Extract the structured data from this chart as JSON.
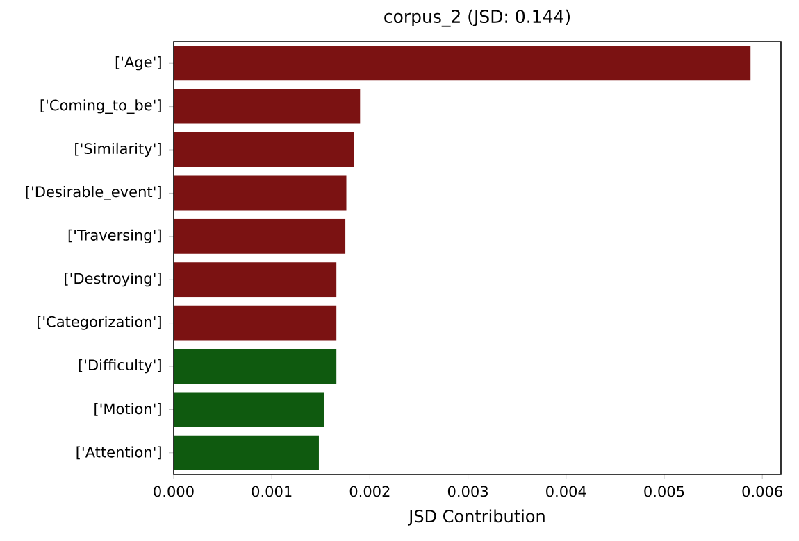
{
  "chart_data": {
    "type": "bar",
    "orientation": "horizontal",
    "title": "corpus_2 (JSD: 0.144)",
    "xlabel": "JSD Contribution",
    "categories": [
      "['Age']",
      "['Coming_to_be']",
      "['Similarity']",
      "['Desirable_event']",
      "['Traversing']",
      "['Destroying']",
      "['Categorization']",
      "['Difficulty']",
      "['Motion']",
      "['Attention']"
    ],
    "values": [
      0.00588,
      0.0019,
      0.00184,
      0.00176,
      0.00175,
      0.00166,
      0.00166,
      0.00166,
      0.00153,
      0.00148
    ],
    "colors": [
      "#7b1212",
      "#7b1212",
      "#7b1212",
      "#7b1212",
      "#7b1212",
      "#7b1212",
      "#7b1212",
      "#0f5a0f",
      "#0f5a0f",
      "#0f5a0f"
    ],
    "xlim": [
      0,
      0.00619
    ],
    "xticks": [
      {
        "value": 0,
        "label": "0.000"
      },
      {
        "value": 0.001,
        "label": "0.001"
      },
      {
        "value": 0.002,
        "label": "0.002"
      },
      {
        "value": 0.003,
        "label": "0.003"
      },
      {
        "value": 0.004,
        "label": "0.004"
      },
      {
        "value": 0.005,
        "label": "0.005"
      },
      {
        "value": 0.006,
        "label": "0.006"
      }
    ]
  }
}
